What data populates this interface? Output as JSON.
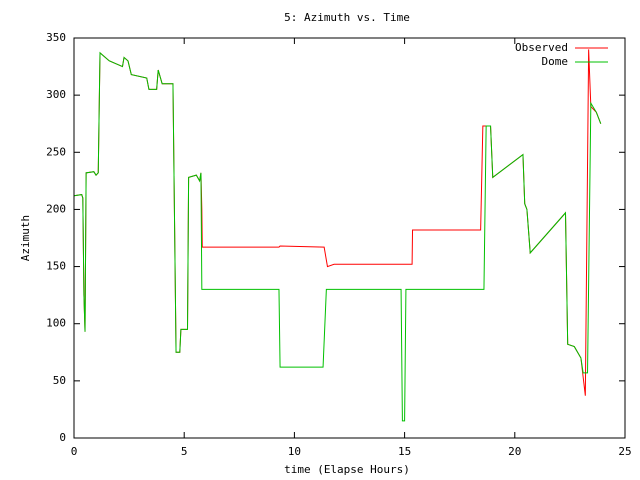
{
  "chart_data": {
    "type": "line",
    "title": "5: Azimuth vs. Time",
    "xlabel": "time (Elapse Hours)",
    "ylabel": "Azimuth",
    "xlim": [
      0,
      25
    ],
    "xticks": [
      0,
      5,
      10,
      15,
      20,
      25
    ],
    "ylim": [
      0,
      350
    ],
    "yticks": [
      0,
      50,
      100,
      150,
      200,
      250,
      300,
      350
    ],
    "grid": false,
    "legend": "top-right",
    "series": [
      {
        "name": "Observed",
        "color": "#ff0000",
        "x": [
          0,
          0.35,
          0.4,
          0.45,
          0.5,
          0.55,
          0.9,
          1.0,
          1.1,
          1.18,
          1.6,
          2.2,
          2.27,
          2.45,
          2.6,
          3.3,
          3.4,
          3.75,
          3.82,
          4.0,
          4.49,
          4.63,
          4.8,
          4.85,
          5.15,
          5.2,
          5.55,
          5.7,
          5.76,
          5.8,
          5.82,
          9.3,
          9.35,
          11.35,
          11.5,
          11.8,
          15.34,
          15.36,
          18.45,
          18.55,
          18.9,
          19.0,
          20.37,
          20.45,
          20.55,
          20.7,
          22.3,
          22.4,
          22.7,
          23.0,
          23.2,
          23.35,
          23.45,
          23.7,
          23.9
        ],
        "values": [
          212,
          213,
          210,
          125,
          93,
          232,
          233,
          230,
          232,
          337,
          330,
          325,
          333,
          330,
          318,
          315,
          305,
          305,
          322,
          310,
          310,
          75,
          75,
          95,
          95,
          228,
          230,
          225,
          232,
          200,
          167,
          167,
          168,
          167,
          150,
          152,
          152,
          182,
          182,
          273,
          273,
          228,
          248,
          205,
          200,
          162,
          197,
          82,
          80,
          70,
          37,
          340,
          290,
          285,
          275
        ]
      },
      {
        "name": "Dome",
        "color": "#00c000",
        "x": [
          0,
          0.35,
          0.4,
          0.45,
          0.5,
          0.55,
          0.9,
          1.0,
          1.1,
          1.18,
          1.6,
          2.2,
          2.27,
          2.45,
          2.6,
          3.3,
          3.4,
          3.75,
          3.82,
          4.0,
          4.49,
          4.63,
          4.8,
          4.85,
          5.15,
          5.2,
          5.55,
          5.7,
          5.76,
          5.8,
          9.3,
          9.35,
          11.3,
          11.45,
          14.84,
          14.9,
          15.0,
          15.06,
          18.6,
          18.7,
          18.9,
          19.0,
          20.37,
          20.45,
          20.55,
          20.7,
          22.3,
          22.4,
          22.7,
          23.0,
          23.1,
          23.3,
          23.45,
          23.7,
          23.9
        ],
        "values": [
          212,
          213,
          210,
          125,
          93,
          232,
          233,
          230,
          232,
          337,
          330,
          325,
          333,
          330,
          318,
          315,
          305,
          305,
          322,
          310,
          310,
          75,
          75,
          95,
          95,
          228,
          230,
          225,
          232,
          130,
          130,
          62,
          62,
          130,
          130,
          15,
          15,
          130,
          130,
          273,
          273,
          228,
          248,
          205,
          200,
          162,
          197,
          82,
          80,
          70,
          57,
          57,
          293,
          285,
          275
        ]
      }
    ]
  }
}
